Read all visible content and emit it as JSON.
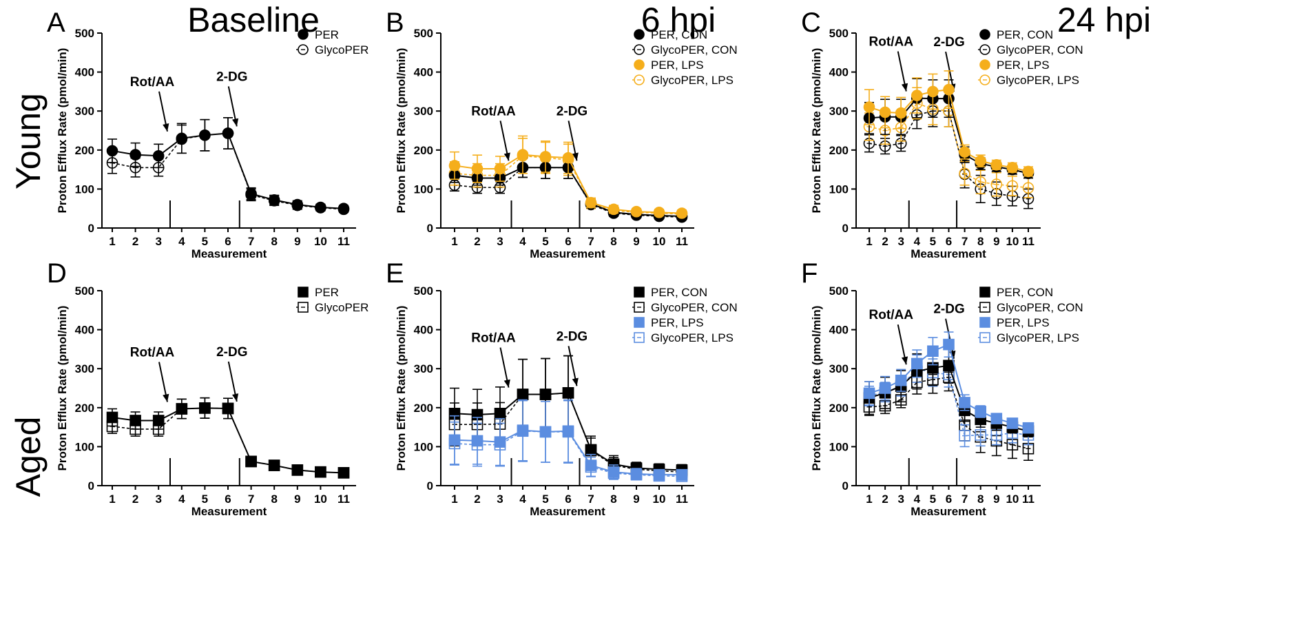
{
  "figure": {
    "column_titles": [
      "Baseline",
      "6 hpi",
      "24 hpi"
    ],
    "row_titles": [
      "Young",
      "Aged"
    ]
  },
  "colors": {
    "black": "#000000",
    "orange": "#F5AE1B",
    "blue": "#5B8DE0"
  },
  "chart_data": [
    {
      "panel": "A",
      "type": "line",
      "marker": "circle",
      "ylabel": "Proton Efflux Rate (pmol/min)",
      "xlabel": "Measurement",
      "x": [
        1,
        2,
        3,
        4,
        5,
        6,
        7,
        8,
        9,
        10,
        11
      ],
      "ylim": [
        0,
        500
      ],
      "yticks": [
        0,
        100,
        200,
        300,
        400,
        500
      ],
      "injections": [
        {
          "label": "Rot/AA",
          "after": 3
        },
        {
          "label": "2-DG",
          "after": 6
        }
      ],
      "series": [
        {
          "name": "PER",
          "color": "black",
          "filled": true,
          "dashed": false,
          "values": [
            198,
            188,
            185,
            230,
            238,
            243,
            88,
            72,
            60,
            53,
            50
          ],
          "err": [
            30,
            30,
            30,
            38,
            40,
            40,
            15,
            12,
            10,
            8,
            8
          ]
        },
        {
          "name": "GlycoPER",
          "color": "black",
          "filled": false,
          "dashed": true,
          "values": [
            167,
            155,
            155,
            228,
            238,
            243,
            85,
            70,
            58,
            52,
            48
          ],
          "err": [
            27,
            24,
            22,
            36,
            40,
            40,
            15,
            12,
            10,
            8,
            8
          ]
        }
      ]
    },
    {
      "panel": "B",
      "type": "line",
      "marker": "circle",
      "ylabel": "Proton Efflux Rate (pmol/min)",
      "xlabel": "Measurement",
      "x": [
        1,
        2,
        3,
        4,
        5,
        6,
        7,
        8,
        9,
        10,
        11
      ],
      "ylim": [
        0,
        500
      ],
      "yticks": [
        0,
        100,
        200,
        300,
        400,
        500
      ],
      "injections": [
        {
          "label": "Rot/AA",
          "after": 3
        },
        {
          "label": "2-DG",
          "after": 6
        }
      ],
      "series": [
        {
          "name": "PER, CON",
          "color": "black",
          "filled": true,
          "dashed": false,
          "values": [
            135,
            128,
            128,
            155,
            155,
            155,
            62,
            40,
            35,
            32,
            30
          ],
          "err": [
            18,
            18,
            18,
            25,
            28,
            28,
            10,
            8,
            6,
            6,
            6
          ]
        },
        {
          "name": "GlycoPER, CON",
          "color": "black",
          "filled": false,
          "dashed": true,
          "values": [
            110,
            104,
            104,
            155,
            155,
            155,
            60,
            38,
            33,
            30,
            28
          ],
          "err": [
            15,
            15,
            15,
            25,
            28,
            28,
            10,
            8,
            6,
            6,
            6
          ]
        },
        {
          "name": "PER, LPS",
          "color": "orange",
          "filled": true,
          "dashed": false,
          "values": [
            160,
            152,
            152,
            188,
            183,
            180,
            65,
            48,
            42,
            40,
            38
          ],
          "err": [
            35,
            35,
            32,
            48,
            40,
            40,
            12,
            10,
            8,
            8,
            8
          ]
        },
        {
          "name": "GlycoPER, LPS",
          "color": "orange",
          "filled": false,
          "dashed": true,
          "values": [
            140,
            135,
            135,
            185,
            180,
            175,
            62,
            45,
            40,
            38,
            36
          ],
          "err": [
            30,
            30,
            30,
            45,
            40,
            40,
            12,
            10,
            8,
            8,
            8
          ]
        }
      ]
    },
    {
      "panel": "C",
      "type": "line",
      "marker": "circle",
      "ylabel": "Proton Efflux Rate (pmol/min)",
      "xlabel": "Measurement",
      "x": [
        1,
        2,
        3,
        4,
        5,
        6,
        7,
        8,
        9,
        10,
        11
      ],
      "ylim": [
        0,
        500
      ],
      "yticks": [
        0,
        100,
        200,
        300,
        400,
        500
      ],
      "injections": [
        {
          "label": "Rot/AA",
          "after": 3
        },
        {
          "label": "2-DG",
          "after": 6
        }
      ],
      "series": [
        {
          "name": "PER, CON",
          "color": "black",
          "filled": true,
          "dashed": false,
          "values": [
            282,
            285,
            285,
            333,
            332,
            332,
            188,
            165,
            157,
            150,
            140
          ],
          "err": [
            40,
            45,
            45,
            50,
            48,
            48,
            20,
            15,
            12,
            12,
            12
          ]
        },
        {
          "name": "GlycoPER, CON",
          "color": "black",
          "filled": false,
          "dashed": true,
          "values": [
            217,
            210,
            217,
            290,
            300,
            300,
            138,
            100,
            88,
            82,
            75
          ],
          "err": [
            22,
            20,
            20,
            35,
            40,
            40,
            35,
            35,
            30,
            25,
            25
          ]
        },
        {
          "name": "PER, LPS",
          "color": "orange",
          "filled": true,
          "dashed": false,
          "values": [
            310,
            297,
            295,
            340,
            350,
            355,
            195,
            172,
            162,
            155,
            145
          ],
          "err": [
            45,
            40,
            40,
            45,
            45,
            48,
            18,
            15,
            12,
            12,
            12
          ]
        },
        {
          "name": "GlycoPER, LPS",
          "color": "orange",
          "filled": false,
          "dashed": true,
          "values": [
            260,
            250,
            258,
            320,
            305,
            300,
            140,
            118,
            112,
            108,
            103
          ],
          "err": [
            35,
            35,
            35,
            40,
            40,
            40,
            30,
            30,
            30,
            25,
            25
          ]
        }
      ]
    },
    {
      "panel": "D",
      "type": "line",
      "marker": "square",
      "ylabel": "Proton Efflux Rate (pmol/min)",
      "xlabel": "Measurement",
      "x": [
        1,
        2,
        3,
        4,
        5,
        6,
        7,
        8,
        9,
        10,
        11
      ],
      "ylim": [
        0,
        500
      ],
      "yticks": [
        0,
        100,
        200,
        300,
        400,
        500
      ],
      "injections": [
        {
          "label": "Rot/AA",
          "after": 3
        },
        {
          "label": "2-DG",
          "after": 6
        }
      ],
      "series": [
        {
          "name": "PER",
          "color": "black",
          "filled": true,
          "dashed": false,
          "values": [
            175,
            167,
            167,
            197,
            199,
            198,
            62,
            52,
            40,
            35,
            33
          ],
          "err": [
            22,
            22,
            22,
            25,
            26,
            26,
            8,
            6,
            5,
            5,
            5
          ]
        },
        {
          "name": "GlycoPER",
          "color": "black",
          "filled": false,
          "dashed": true,
          "values": [
            152,
            145,
            145,
            197,
            199,
            198,
            62,
            52,
            40,
            35,
            33
          ],
          "err": [
            18,
            18,
            18,
            25,
            26,
            26,
            8,
            6,
            5,
            5,
            5
          ]
        }
      ]
    },
    {
      "panel": "E",
      "type": "line",
      "marker": "square",
      "ylabel": "Proton Efflux Rate (pmol/min)",
      "xlabel": "Measurement",
      "x": [
        1,
        2,
        3,
        4,
        5,
        6,
        7,
        8,
        9,
        10,
        11
      ],
      "ylim": [
        0,
        500
      ],
      "yticks": [
        0,
        100,
        200,
        300,
        400,
        500
      ],
      "injections": [
        {
          "label": "Rot/AA",
          "after": 3
        },
        {
          "label": "2-DG",
          "after": 6
        }
      ],
      "series": [
        {
          "name": "PER, CON",
          "color": "black",
          "filled": true,
          "dashed": false,
          "values": [
            185,
            182,
            185,
            234,
            234,
            238,
            92,
            55,
            45,
            42,
            40
          ],
          "err": [
            65,
            65,
            68,
            90,
            92,
            95,
            35,
            22,
            15,
            14,
            14
          ]
        },
        {
          "name": "GlycoPER, CON",
          "color": "black",
          "filled": false,
          "dashed": true,
          "values": [
            157,
            157,
            158,
            234,
            234,
            238,
            90,
            52,
            42,
            38,
            35
          ],
          "err": [
            55,
            55,
            55,
            90,
            92,
            95,
            32,
            20,
            14,
            12,
            12
          ]
        },
        {
          "name": "PER, LPS",
          "color": "blue",
          "filled": true,
          "dashed": false,
          "values": [
            117,
            115,
            112,
            142,
            138,
            140,
            52,
            35,
            30,
            28,
            28
          ],
          "err": [
            62,
            60,
            60,
            78,
            78,
            80,
            28,
            18,
            14,
            12,
            12
          ]
        },
        {
          "name": "GlycoPER, LPS",
          "color": "blue",
          "filled": false,
          "dashed": true,
          "values": [
            108,
            105,
            105,
            140,
            138,
            138,
            48,
            32,
            28,
            25,
            24
          ],
          "err": [
            55,
            55,
            55,
            78,
            78,
            80,
            25,
            16,
            12,
            10,
            10
          ]
        }
      ]
    },
    {
      "panel": "F",
      "type": "line",
      "marker": "square",
      "ylabel": "Proton Efflux Rate (pmol/min)",
      "xlabel": "Measurement",
      "x": [
        1,
        2,
        3,
        4,
        5,
        6,
        7,
        8,
        9,
        10,
        11
      ],
      "ylim": [
        0,
        500
      ],
      "yticks": [
        0,
        100,
        200,
        300,
        400,
        500
      ],
      "injections": [
        {
          "label": "Rot/AA",
          "after": 3
        },
        {
          "label": "2-DG",
          "after": 6
        }
      ],
      "series": [
        {
          "name": "PER, CON",
          "color": "black",
          "filled": true,
          "dashed": false,
          "values": [
            225,
            238,
            255,
            293,
            302,
            308,
            193,
            170,
            160,
            150,
            140
          ],
          "err": [
            42,
            40,
            40,
            45,
            45,
            45,
            28,
            20,
            18,
            15,
            12
          ]
        },
        {
          "name": "GlycoPER, CON",
          "color": "black",
          "filled": false,
          "dashed": true,
          "values": [
            202,
            205,
            220,
            265,
            272,
            278,
            155,
            125,
            115,
            105,
            95
          ],
          "err": [
            22,
            20,
            20,
            30,
            35,
            35,
            40,
            40,
            38,
            35,
            30
          ]
        },
        {
          "name": "PER, LPS",
          "color": "blue",
          "filled": true,
          "dashed": false,
          "values": [
            237,
            250,
            270,
            313,
            345,
            362,
            213,
            190,
            172,
            160,
            148
          ],
          "err": [
            30,
            30,
            28,
            35,
            35,
            32,
            20,
            15,
            12,
            12,
            10
          ]
        },
        {
          "name": "GlycoPER, LPS",
          "color": "blue",
          "filled": false,
          "dashed": true,
          "values": [
            230,
            240,
            255,
            300,
            290,
            285,
            128,
            130,
            130,
            135,
            130
          ],
          "err": [
            25,
            25,
            25,
            35,
            35,
            32,
            28,
            28,
            25,
            25,
            25
          ]
        }
      ]
    }
  ]
}
